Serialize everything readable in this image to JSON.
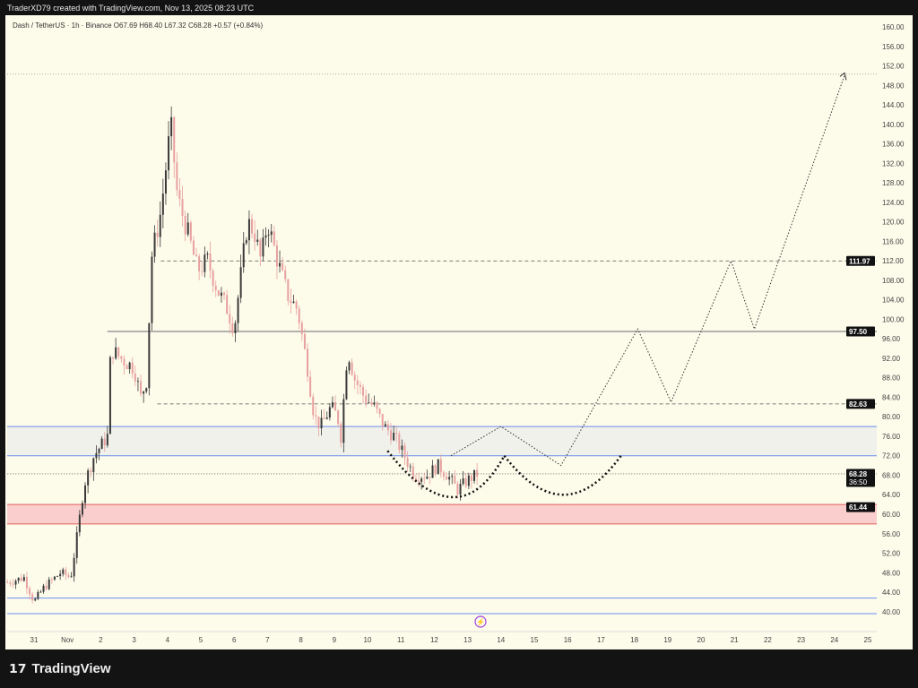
{
  "header": {
    "credit": "TraderXD79 created with TradingView.com, Nov 13, 2025 08:23 UTC",
    "legend": "Dash / TetherUS · 1h · Binance  O67.69  H68.40  L67.32  C68.28  +0.57 (+0.84%)"
  },
  "brand": {
    "name": "TradingView",
    "logo": "tradingview-logo-icon"
  },
  "chart_data": {
    "type": "line",
    "title": "Dash / TetherUS · 1h · Binance",
    "ylim": [
      40,
      160
    ],
    "yticks": [
      "160.00",
      "156.00",
      "152.00",
      "148.00",
      "144.00",
      "140.00",
      "136.00",
      "132.00",
      "128.00",
      "124.00",
      "120.00",
      "116.00",
      "112.00",
      "108.00",
      "104.00",
      "100.00",
      "96.00",
      "92.00",
      "88.00",
      "84.00",
      "80.00",
      "76.00",
      "72.00",
      "68.00",
      "64.00",
      "60.00",
      "56.00",
      "52.00",
      "48.00",
      "44.00",
      "40.00"
    ],
    "xticks": [
      {
        "d": 0,
        "label": "31"
      },
      {
        "d": 1,
        "label": "Nov"
      },
      {
        "d": 2,
        "label": "2"
      },
      {
        "d": 3,
        "label": "3"
      },
      {
        "d": 4,
        "label": "4"
      },
      {
        "d": 5,
        "label": "5"
      },
      {
        "d": 6,
        "label": "6"
      },
      {
        "d": 7,
        "label": "7"
      },
      {
        "d": 8,
        "label": "8"
      },
      {
        "d": 9,
        "label": "9"
      },
      {
        "d": 10,
        "label": "10"
      },
      {
        "d": 11,
        "label": "11"
      },
      {
        "d": 12,
        "label": "12"
      },
      {
        "d": 13,
        "label": "13"
      },
      {
        "d": 14,
        "label": "14"
      },
      {
        "d": 15,
        "label": "15"
      },
      {
        "d": 16,
        "label": "16"
      },
      {
        "d": 17,
        "label": "17"
      },
      {
        "d": 18,
        "label": "18"
      },
      {
        "d": 19,
        "label": "19"
      },
      {
        "d": 20,
        "label": "20"
      },
      {
        "d": 21,
        "label": "21"
      },
      {
        "d": 22,
        "label": "22"
      },
      {
        "d": 23,
        "label": "23"
      },
      {
        "d": 24,
        "label": "24"
      },
      {
        "d": 25,
        "label": "25"
      }
    ],
    "price_path": [
      [
        -0.8,
        46
      ],
      [
        -0.3,
        47
      ],
      [
        0,
        42
      ],
      [
        0.3,
        45
      ],
      [
        0.8,
        48
      ],
      [
        1.1,
        47
      ],
      [
        1.3,
        56
      ],
      [
        1.5,
        66
      ],
      [
        1.8,
        72
      ],
      [
        2.2,
        76
      ],
      [
        2.3,
        94
      ],
      [
        2.6,
        92
      ],
      [
        3.0,
        90
      ],
      [
        3.2,
        84
      ],
      [
        3.4,
        88
      ],
      [
        3.5,
        112
      ],
      [
        3.8,
        122
      ],
      [
        4.1,
        140
      ],
      [
        4.3,
        125
      ],
      [
        4.6,
        118
      ],
      [
        4.9,
        110
      ],
      [
        5.2,
        112
      ],
      [
        5.5,
        106
      ],
      [
        5.8,
        102
      ],
      [
        6.0,
        98
      ],
      [
        6.4,
        120
      ],
      [
        6.6,
        118
      ],
      [
        6.8,
        112
      ],
      [
        7.0,
        120
      ],
      [
        7.3,
        112
      ],
      [
        7.6,
        105
      ],
      [
        7.9,
        102
      ],
      [
        8.2,
        90
      ],
      [
        8.4,
        80
      ],
      [
        8.6,
        78
      ],
      [
        8.9,
        82
      ],
      [
        9.1,
        80
      ],
      [
        9.2,
        76
      ],
      [
        9.4,
        94
      ],
      [
        9.6,
        88
      ],
      [
        9.9,
        84
      ],
      [
        10.2,
        82
      ],
      [
        10.5,
        78
      ],
      [
        10.8,
        76
      ],
      [
        11.1,
        72
      ],
      [
        11.4,
        68
      ],
      [
        11.8,
        68
      ],
      [
        12.1,
        70
      ],
      [
        12.4,
        68
      ],
      [
        12.7,
        65
      ],
      [
        13.0,
        67
      ],
      [
        13.3,
        68.28
      ]
    ],
    "levels": [
      {
        "price": 111.97,
        "label": "111.97",
        "style": "dashed",
        "from_d": 3.8
      },
      {
        "price": 97.5,
        "label": "97.50",
        "style": "solid",
        "from_d": 2.2
      },
      {
        "price": 82.63,
        "label": "82.63",
        "style": "dashed",
        "from_d": 3.7
      },
      {
        "price": 68.28,
        "label": "68.28",
        "sub": "36:50",
        "style": "dotted",
        "from_d": -0.8
      },
      {
        "price": 61.44,
        "label": "61.44",
        "style": "none",
        "from_d": -0.8
      }
    ],
    "zones": [
      {
        "from": 72,
        "to": 78,
        "fill": "#eef0ea",
        "stroke": "#6a8ff0"
      },
      {
        "from": 58,
        "to": 62,
        "fill": "#f9c9c9",
        "stroke": "#e06060"
      },
      {
        "from": 39.6,
        "to": 42.8,
        "fill": "none",
        "stroke": "#6a8ff0"
      }
    ],
    "projection": [
      [
        12.5,
        72
      ],
      [
        14,
        78
      ],
      [
        15.8,
        70
      ],
      [
        18.1,
        98
      ],
      [
        19.1,
        83
      ],
      [
        20.9,
        112
      ],
      [
        21.6,
        98
      ],
      [
        24.3,
        150
      ]
    ],
    "arcs": [
      [
        [
          10.6,
          73
        ],
        [
          12.7,
          63.5
        ],
        [
          14.1,
          72
        ]
      ],
      [
        [
          14.1,
          72
        ],
        [
          15.9,
          64
        ],
        [
          17.6,
          72
        ]
      ]
    ],
    "colors": {
      "up": "#3a3a3a",
      "down": "#e8a0a0",
      "background": "#fdfbea"
    }
  }
}
